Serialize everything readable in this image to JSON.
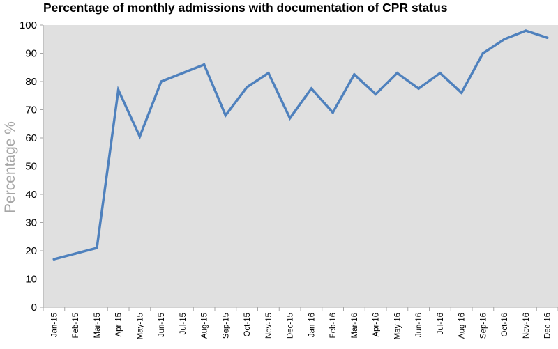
{
  "chart_data": {
    "type": "line",
    "title": "Percentage of monthly admissions with documentation of CPR status",
    "xlabel": "",
    "ylabel": "Percentage %",
    "ylim": [
      0,
      100
    ],
    "yticks": [
      0,
      10,
      20,
      30,
      40,
      50,
      60,
      70,
      80,
      90,
      100
    ],
    "grid": false,
    "legend": "none",
    "categories": [
      "Jan-15",
      "Feb-15",
      "Mar-15",
      "Apr-15",
      "May-15",
      "Jun-15",
      "Jul-15",
      "Aug-15",
      "Sep-15",
      "Oct-15",
      "Nov-15",
      "Dec-15",
      "Jan-16",
      "Feb-16",
      "Mar-16",
      "Apr-16",
      "May-16",
      "Jun-16",
      "Jul-16",
      "Aug-16",
      "Sep-16",
      "Oct-16",
      "Nov-16",
      "Dec-16"
    ],
    "series": [
      {
        "values": [
          17,
          19,
          21,
          77,
          60.5,
          80,
          83,
          86,
          68,
          78,
          83,
          67,
          77.5,
          69,
          82.5,
          75.5,
          83,
          77.5,
          83,
          76,
          90,
          95,
          98,
          95.5
        ]
      }
    ],
    "colors": {
      "line": "#4f81bd",
      "plot_background": "#e0e0e0",
      "axis": "#a6a6a6",
      "ylabel": "#a6a6a6"
    }
  }
}
